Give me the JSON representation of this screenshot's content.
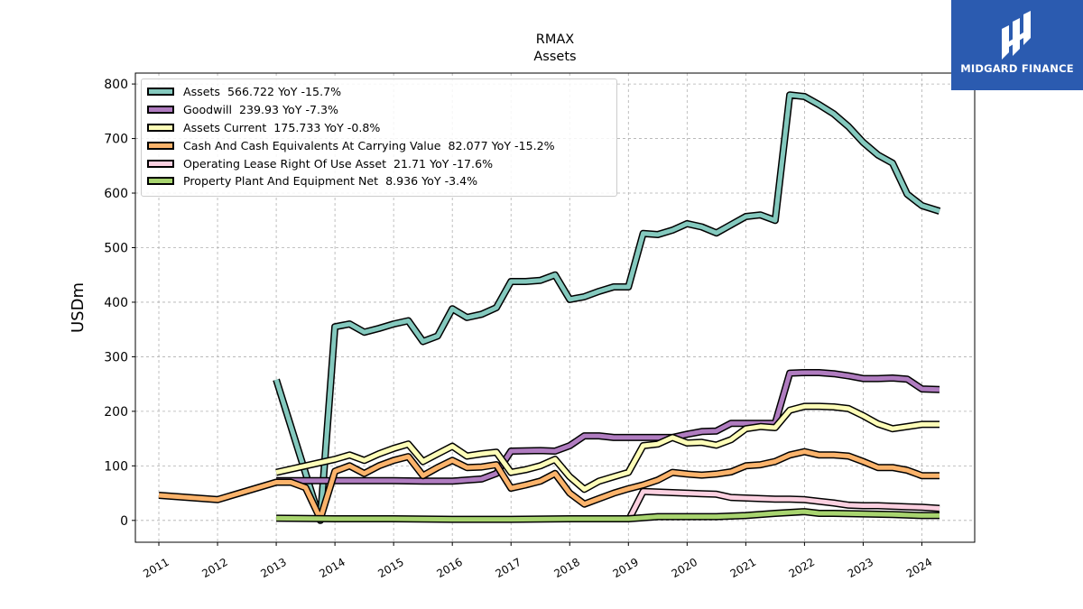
{
  "logo": {
    "text": "MIDGARD FINANCE",
    "icon": "midgard-logo-icon",
    "color": "#2b5bb0"
  },
  "chart_data": {
    "type": "line",
    "title": "RMAX",
    "subtitle": "Assets",
    "xlabel": "",
    "ylabel": "USDm",
    "xlim": [
      2010.6,
      2024.9
    ],
    "ylim": [
      -40,
      820
    ],
    "x_ticks": [
      "2011",
      "2012",
      "2013",
      "2014",
      "2015",
      "2016",
      "2017",
      "2018",
      "2019",
      "2020",
      "2021",
      "2022",
      "2023",
      "2024"
    ],
    "y_ticks": [
      "0",
      "100",
      "200",
      "300",
      "400",
      "500",
      "600",
      "700",
      "800"
    ],
    "grid": true,
    "legend_position": "top-left",
    "series": [
      {
        "name": "Assets  566.722 YoY -15.7%",
        "color": "#84c9be",
        "points": [
          [
            2013.0,
            258
          ],
          [
            2013.75,
            0
          ],
          [
            2014.0,
            355
          ],
          [
            2014.25,
            360
          ],
          [
            2014.5,
            345
          ],
          [
            2014.75,
            352
          ],
          [
            2015.0,
            360
          ],
          [
            2015.25,
            366
          ],
          [
            2015.5,
            328
          ],
          [
            2015.75,
            338
          ],
          [
            2016.0,
            388
          ],
          [
            2016.25,
            372
          ],
          [
            2016.5,
            378
          ],
          [
            2016.75,
            390
          ],
          [
            2017.0,
            438
          ],
          [
            2017.25,
            438
          ],
          [
            2017.5,
            440
          ],
          [
            2017.75,
            450
          ],
          [
            2018.0,
            405
          ],
          [
            2018.25,
            410
          ],
          [
            2018.5,
            420
          ],
          [
            2018.75,
            428
          ],
          [
            2019.0,
            428
          ],
          [
            2019.25,
            526
          ],
          [
            2019.5,
            524
          ],
          [
            2019.75,
            532
          ],
          [
            2020.0,
            544
          ],
          [
            2020.25,
            538
          ],
          [
            2020.5,
            527
          ],
          [
            2020.75,
            542
          ],
          [
            2021.0,
            557
          ],
          [
            2021.25,
            560
          ],
          [
            2021.5,
            550
          ],
          [
            2021.75,
            780
          ],
          [
            2022.0,
            777
          ],
          [
            2022.25,
            762
          ],
          [
            2022.5,
            745
          ],
          [
            2022.75,
            722
          ],
          [
            2023.0,
            693
          ],
          [
            2023.25,
            670
          ],
          [
            2023.5,
            655
          ],
          [
            2023.75,
            598
          ],
          [
            2024.0,
            577
          ],
          [
            2024.3,
            567
          ]
        ]
      },
      {
        "name": "Goodwill  239.93 YoY -7.3%",
        "color": "#b07cc0",
        "points": [
          [
            2013.0,
            73
          ],
          [
            2014.0,
            73
          ],
          [
            2015.0,
            73
          ],
          [
            2015.5,
            72
          ],
          [
            2016.0,
            72
          ],
          [
            2016.5,
            76
          ],
          [
            2016.75,
            86
          ],
          [
            2017.0,
            127
          ],
          [
            2017.5,
            128
          ],
          [
            2017.75,
            127
          ],
          [
            2018.0,
            137
          ],
          [
            2018.25,
            155
          ],
          [
            2018.5,
            155
          ],
          [
            2018.75,
            152
          ],
          [
            2019.0,
            152
          ],
          [
            2019.5,
            152
          ],
          [
            2019.75,
            152
          ],
          [
            2020.0,
            158
          ],
          [
            2020.25,
            163
          ],
          [
            2020.5,
            164
          ],
          [
            2020.75,
            178
          ],
          [
            2021.0,
            178
          ],
          [
            2021.25,
            178
          ],
          [
            2021.5,
            178
          ],
          [
            2021.75,
            270
          ],
          [
            2022.0,
            271
          ],
          [
            2022.25,
            271
          ],
          [
            2022.5,
            269
          ],
          [
            2022.75,
            265
          ],
          [
            2023.0,
            260
          ],
          [
            2023.25,
            260
          ],
          [
            2023.5,
            261
          ],
          [
            2023.75,
            259
          ],
          [
            2024.0,
            241
          ],
          [
            2024.3,
            240
          ]
        ]
      },
      {
        "name": "Assets Current  175.733 YoY -0.8%",
        "color": "#fdfdb8",
        "points": [
          [
            2013.0,
            88
          ],
          [
            2013.75,
            106
          ],
          [
            2014.0,
            112
          ],
          [
            2014.25,
            120
          ],
          [
            2014.5,
            110
          ],
          [
            2014.75,
            122
          ],
          [
            2015.0,
            132
          ],
          [
            2015.25,
            140
          ],
          [
            2015.5,
            108
          ],
          [
            2015.75,
            122
          ],
          [
            2016.0,
            136
          ],
          [
            2016.25,
            118
          ],
          [
            2016.5,
            122
          ],
          [
            2016.75,
            125
          ],
          [
            2017.0,
            88
          ],
          [
            2017.25,
            93
          ],
          [
            2017.5,
            100
          ],
          [
            2017.75,
            112
          ],
          [
            2018.0,
            80
          ],
          [
            2018.25,
            57
          ],
          [
            2018.5,
            72
          ],
          [
            2018.75,
            80
          ],
          [
            2019.0,
            88
          ],
          [
            2019.25,
            137
          ],
          [
            2019.5,
            140
          ],
          [
            2019.75,
            152
          ],
          [
            2020.0,
            142
          ],
          [
            2020.25,
            143
          ],
          [
            2020.5,
            138
          ],
          [
            2020.75,
            148
          ],
          [
            2021.0,
            168
          ],
          [
            2021.25,
            172
          ],
          [
            2021.5,
            170
          ],
          [
            2021.75,
            202
          ],
          [
            2022.0,
            209
          ],
          [
            2022.25,
            209
          ],
          [
            2022.5,
            208
          ],
          [
            2022.75,
            205
          ],
          [
            2023.0,
            192
          ],
          [
            2023.25,
            177
          ],
          [
            2023.5,
            168
          ],
          [
            2023.75,
            172
          ],
          [
            2024.0,
            176
          ],
          [
            2024.3,
            176
          ]
        ]
      },
      {
        "name": "Cash And Cash Equivalents At Carrying Value  82.077 YoY -15.2%",
        "color": "#fbb36b",
        "points": [
          [
            2011.0,
            46
          ],
          [
            2012.0,
            38
          ],
          [
            2013.0,
            70
          ],
          [
            2013.25,
            70
          ],
          [
            2013.5,
            60
          ],
          [
            2013.75,
            3
          ],
          [
            2014.0,
            90
          ],
          [
            2014.25,
            100
          ],
          [
            2014.5,
            86
          ],
          [
            2014.75,
            100
          ],
          [
            2015.0,
            110
          ],
          [
            2015.25,
            117
          ],
          [
            2015.5,
            82
          ],
          [
            2015.75,
            97
          ],
          [
            2016.0,
            110
          ],
          [
            2016.25,
            97
          ],
          [
            2016.5,
            98
          ],
          [
            2016.75,
            102
          ],
          [
            2017.0,
            59
          ],
          [
            2017.25,
            65
          ],
          [
            2017.5,
            72
          ],
          [
            2017.75,
            86
          ],
          [
            2018.0,
            50
          ],
          [
            2018.25,
            30
          ],
          [
            2018.5,
            40
          ],
          [
            2018.75,
            50
          ],
          [
            2019.0,
            58
          ],
          [
            2019.25,
            65
          ],
          [
            2019.5,
            74
          ],
          [
            2019.75,
            88
          ],
          [
            2020.0,
            85
          ],
          [
            2020.25,
            83
          ],
          [
            2020.5,
            85
          ],
          [
            2020.75,
            89
          ],
          [
            2021.0,
            100
          ],
          [
            2021.25,
            102
          ],
          [
            2021.5,
            108
          ],
          [
            2021.75,
            120
          ],
          [
            2022.0,
            126
          ],
          [
            2022.25,
            120
          ],
          [
            2022.5,
            120
          ],
          [
            2022.75,
            118
          ],
          [
            2023.0,
            108
          ],
          [
            2023.25,
            97
          ],
          [
            2023.5,
            97
          ],
          [
            2023.75,
            92
          ],
          [
            2024.0,
            82
          ],
          [
            2024.3,
            82
          ]
        ]
      },
      {
        "name": "Operating Lease Right Of Use Asset  21.71 YoY -17.6%",
        "color": "#fbd0e0",
        "points": [
          [
            2019.0,
            0
          ],
          [
            2019.25,
            53
          ],
          [
            2019.5,
            52
          ],
          [
            2019.75,
            51
          ],
          [
            2020.0,
            50
          ],
          [
            2020.25,
            49
          ],
          [
            2020.5,
            48
          ],
          [
            2020.75,
            42
          ],
          [
            2021.0,
            41
          ],
          [
            2021.25,
            40
          ],
          [
            2021.5,
            39
          ],
          [
            2021.75,
            39
          ],
          [
            2022.0,
            38
          ],
          [
            2022.25,
            35
          ],
          [
            2022.5,
            32
          ],
          [
            2022.75,
            28
          ],
          [
            2023.0,
            27
          ],
          [
            2023.25,
            27
          ],
          [
            2023.5,
            26
          ],
          [
            2023.75,
            25
          ],
          [
            2024.0,
            24
          ],
          [
            2024.3,
            22
          ]
        ]
      },
      {
        "name": "Property Plant And Equipment Net  8.936 YoY -3.4%",
        "color": "#a8d46f",
        "points": [
          [
            2013.0,
            4
          ],
          [
            2014.0,
            3
          ],
          [
            2015.0,
            3
          ],
          [
            2016.0,
            2
          ],
          [
            2017.0,
            2
          ],
          [
            2018.0,
            3
          ],
          [
            2019.0,
            3
          ],
          [
            2019.5,
            7
          ],
          [
            2020.0,
            7
          ],
          [
            2020.5,
            7
          ],
          [
            2021.0,
            9
          ],
          [
            2021.5,
            13
          ],
          [
            2022.0,
            16
          ],
          [
            2022.25,
            13
          ],
          [
            2022.5,
            13
          ],
          [
            2023.0,
            12
          ],
          [
            2023.5,
            11
          ],
          [
            2024.0,
            9
          ],
          [
            2024.3,
            9
          ]
        ]
      }
    ]
  }
}
